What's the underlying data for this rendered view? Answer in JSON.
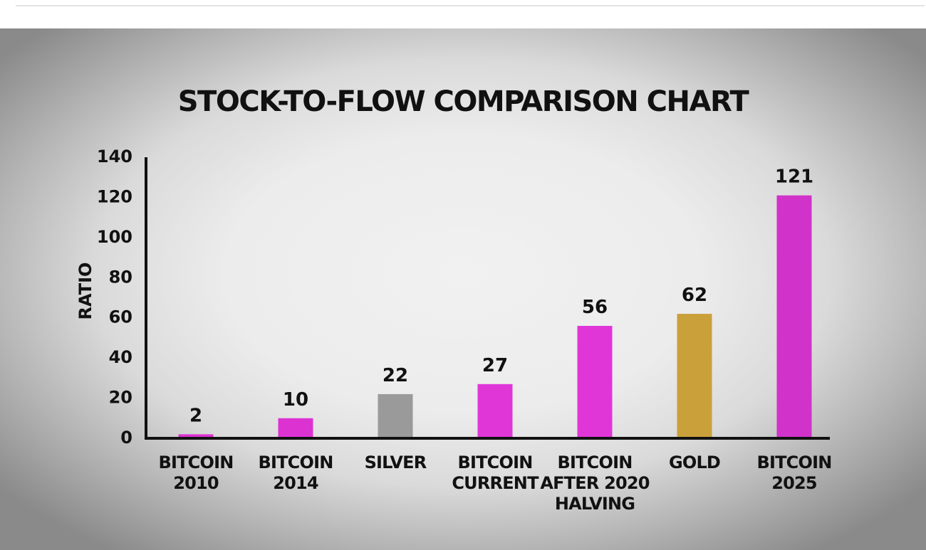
{
  "chart_data": {
    "type": "bar",
    "title": "STOCK-TO-FLOW COMPARISON CHART",
    "xlabel": "",
    "ylabel": "RATIO",
    "ylim": [
      0,
      140
    ],
    "yticks": [
      0,
      20,
      40,
      60,
      80,
      100,
      120,
      140
    ],
    "grid": false,
    "categories": [
      [
        "BITCOIN",
        "2010"
      ],
      [
        "BITCOIN",
        "2014"
      ],
      [
        "SILVER"
      ],
      [
        "BITCOIN",
        "CURRENT"
      ],
      [
        "BITCOIN",
        "AFTER 2020",
        "HALVING"
      ],
      [
        "GOLD"
      ],
      [
        "BITCOIN",
        "2025"
      ]
    ],
    "values": [
      2,
      10,
      22,
      27,
      56,
      62,
      121
    ],
    "data_labels": [
      "2",
      "10",
      "22",
      "27",
      "56",
      "62",
      "121"
    ],
    "colors": [
      "#dc32d2",
      "#dc32d2",
      "#9a9a9a",
      "#e036d8",
      "#e036d8",
      "#caa03a",
      "#d032ca"
    ]
  }
}
